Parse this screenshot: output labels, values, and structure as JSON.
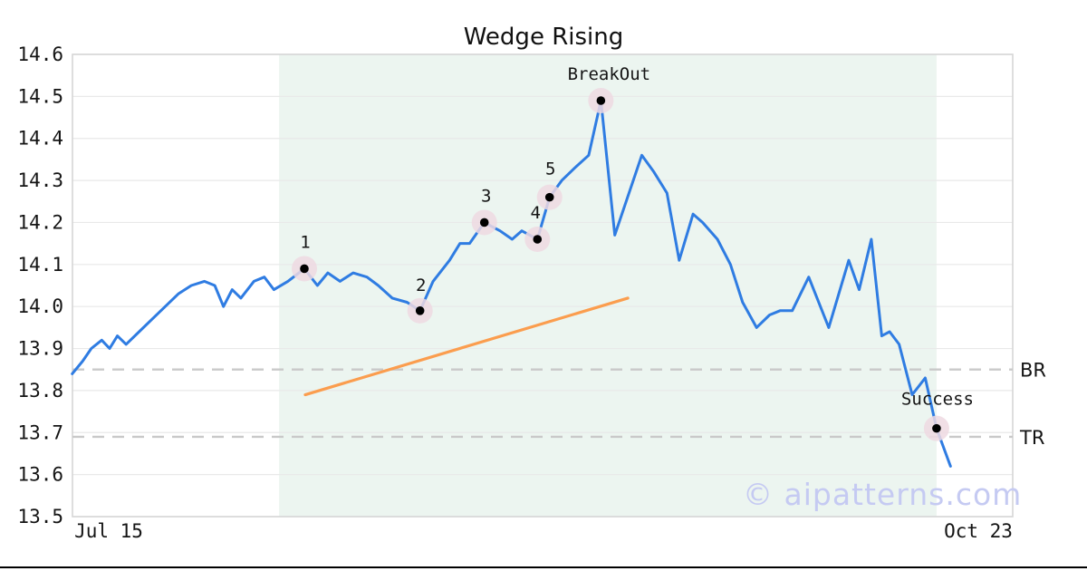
{
  "title": "Wedge Rising",
  "watermark": "© aipatterns.com",
  "colors": {
    "price_line": "#2f7ce2",
    "trend_line": "#fb9d4e",
    "pattern_region": "#ecf5f0",
    "marker_halo": "#efd9e2",
    "marker_dot": "#000000",
    "level_dash": "#c9c9c9",
    "gridline": "#e9e9e9",
    "spine": "#d6d6d6",
    "tick_text": "#1a1a1a",
    "watermark_text": "#c5caf2",
    "bottom_bar": "#000000"
  },
  "chart_data": {
    "type": "line",
    "title": "Wedge Rising",
    "xlabel": "",
    "ylabel": "",
    "x_axis": {
      "unit": "days since Jul 15",
      "tick_labels": [
        "Jul 15",
        "Oct 23"
      ],
      "tick_days": [
        0,
        100
      ],
      "range_days": [
        -4.2,
        104
      ]
    },
    "y_axis": {
      "range": [
        13.5,
        14.6
      ],
      "ticks": [
        14.6,
        14.5,
        14.4,
        14.3,
        14.2,
        14.1,
        14.0,
        13.9,
        13.8,
        13.7,
        13.6,
        13.5
      ],
      "grid": true
    },
    "series": [
      {
        "name": "price",
        "points": [
          [
            -4.2,
            13.84
          ],
          [
            -3.0,
            13.87
          ],
          [
            -2.0,
            13.9
          ],
          [
            -0.8,
            13.92
          ],
          [
            0.1,
            13.9
          ],
          [
            1.0,
            13.93
          ],
          [
            2.0,
            13.91
          ],
          [
            3.5,
            13.94
          ],
          [
            5.0,
            13.97
          ],
          [
            6.5,
            14.0
          ],
          [
            8.0,
            14.03
          ],
          [
            9.5,
            14.05
          ],
          [
            11.0,
            14.06
          ],
          [
            12.2,
            14.05
          ],
          [
            13.2,
            14.0
          ],
          [
            14.2,
            14.04
          ],
          [
            15.2,
            14.02
          ],
          [
            16.7,
            14.06
          ],
          [
            17.9,
            14.07
          ],
          [
            19.0,
            14.04
          ],
          [
            20.6,
            14.06
          ],
          [
            22.5,
            14.09
          ],
          [
            24.0,
            14.05
          ],
          [
            25.2,
            14.08
          ],
          [
            26.6,
            14.06
          ],
          [
            28.1,
            14.08
          ],
          [
            29.7,
            14.07
          ],
          [
            31.0,
            14.05
          ],
          [
            32.6,
            14.02
          ],
          [
            34.3,
            14.01
          ],
          [
            35.8,
            13.99
          ],
          [
            37.3,
            14.06
          ],
          [
            39.2,
            14.11
          ],
          [
            40.4,
            14.15
          ],
          [
            41.5,
            14.15
          ],
          [
            43.2,
            14.2
          ],
          [
            45.0,
            14.18
          ],
          [
            46.4,
            14.16
          ],
          [
            47.5,
            14.18
          ],
          [
            49.3,
            14.16
          ],
          [
            50.7,
            14.26
          ],
          [
            52.1,
            14.3
          ],
          [
            53.6,
            14.33
          ],
          [
            55.2,
            14.36
          ],
          [
            56.6,
            14.49
          ],
          [
            58.2,
            14.17
          ],
          [
            61.3,
            14.36
          ],
          [
            62.7,
            14.32
          ],
          [
            64.2,
            14.27
          ],
          [
            65.6,
            14.11
          ],
          [
            67.2,
            14.22
          ],
          [
            68.3,
            14.2
          ],
          [
            70.0,
            14.16
          ],
          [
            71.5,
            14.1
          ],
          [
            72.9,
            14.01
          ],
          [
            74.5,
            13.95
          ],
          [
            76.0,
            13.98
          ],
          [
            77.2,
            13.99
          ],
          [
            78.6,
            13.99
          ],
          [
            80.5,
            14.07
          ],
          [
            82.8,
            13.95
          ],
          [
            85.1,
            14.11
          ],
          [
            86.3,
            14.04
          ],
          [
            87.7,
            14.16
          ],
          [
            88.9,
            13.93
          ],
          [
            89.8,
            13.94
          ],
          [
            90.9,
            13.91
          ],
          [
            92.4,
            13.79
          ],
          [
            93.9,
            13.83
          ],
          [
            95.2,
            13.71
          ],
          [
            96.8,
            13.62
          ]
        ]
      }
    ],
    "trendline": {
      "name": "rising support trendline",
      "points": [
        [
          22.6,
          13.79
        ],
        [
          59.7,
          14.02
        ]
      ]
    },
    "levels": [
      {
        "label": "BR",
        "value": 13.85
      },
      {
        "label": "TR",
        "value": 13.69
      }
    ],
    "pattern_window": {
      "start_day": 19.6,
      "end_day": 95.2
    },
    "annotations": [
      {
        "label": "1",
        "day": 22.5,
        "value": 14.09
      },
      {
        "label": "2",
        "day": 35.8,
        "value": 13.99
      },
      {
        "label": "3",
        "day": 43.2,
        "value": 14.2
      },
      {
        "label": "4",
        "day": 49.3,
        "value": 14.16
      },
      {
        "label": "5",
        "day": 50.7,
        "value": 14.26
      },
      {
        "label": "BreakOut",
        "day": 56.6,
        "value": 14.49
      },
      {
        "label": "Success",
        "day": 95.2,
        "value": 13.71
      }
    ],
    "legend": null
  }
}
